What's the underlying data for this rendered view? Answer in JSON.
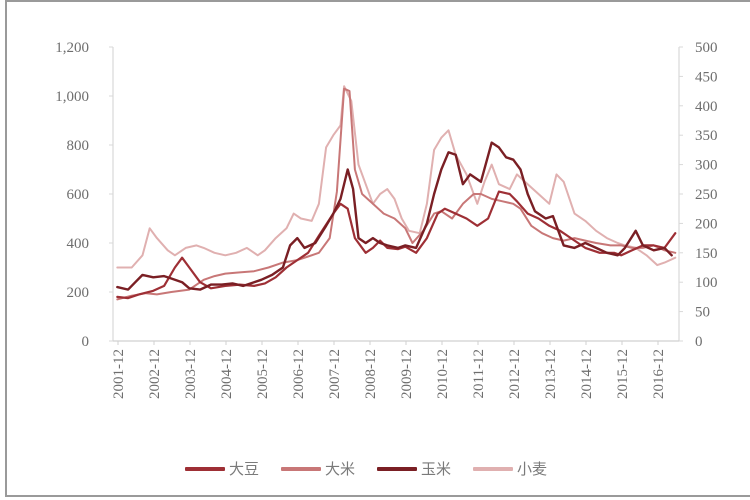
{
  "chart_data": {
    "type": "line",
    "title": "",
    "xlabel": "",
    "ylabel": "",
    "y_left": {
      "min": 0,
      "max": 1200,
      "ticks": [
        0,
        200,
        400,
        600,
        800,
        1000,
        1200
      ],
      "tick_labels": [
        "0",
        "200",
        "400",
        "600",
        "800",
        "1,000",
        "1,200"
      ]
    },
    "y_right": {
      "min": 0,
      "max": 500,
      "ticks": [
        0,
        50,
        100,
        150,
        200,
        250,
        300,
        350,
        400,
        450,
        500
      ],
      "tick_labels": [
        "0",
        "50",
        "100",
        "150",
        "200",
        "250",
        "300",
        "350",
        "400",
        "450",
        "500"
      ]
    },
    "categories": [
      "2001-12",
      "2002-12",
      "2003-12",
      "2004-12",
      "2005-12",
      "2006-12",
      "2007-12",
      "2008-12",
      "2009-12",
      "2010-12",
      "2011-12",
      "2012-12",
      "2013-12",
      "2014-12",
      "2015-12",
      "2016-12"
    ],
    "grid": false,
    "legend_position": "bottom",
    "series": [
      {
        "name": "大豆",
        "color": "#9e2f35",
        "width": 2.2,
        "points": [
          [
            2001.9,
            180
          ],
          [
            2002.2,
            175
          ],
          [
            2002.5,
            190
          ],
          [
            2002.9,
            205
          ],
          [
            2003.2,
            225
          ],
          [
            2003.5,
            300
          ],
          [
            2003.7,
            340
          ],
          [
            2003.9,
            300
          ],
          [
            2004.2,
            240
          ],
          [
            2004.5,
            215
          ],
          [
            2004.9,
            225
          ],
          [
            2005.3,
            230
          ],
          [
            2005.7,
            225
          ],
          [
            2006.0,
            235
          ],
          [
            2006.3,
            260
          ],
          [
            2006.6,
            300
          ],
          [
            2006.9,
            330
          ],
          [
            2007.2,
            360
          ],
          [
            2007.5,
            430
          ],
          [
            2007.9,
            520
          ],
          [
            2008.1,
            560
          ],
          [
            2008.3,
            540
          ],
          [
            2008.5,
            420
          ],
          [
            2008.8,
            360
          ],
          [
            2009.0,
            380
          ],
          [
            2009.2,
            410
          ],
          [
            2009.4,
            380
          ],
          [
            2009.7,
            375
          ],
          [
            2009.9,
            385
          ],
          [
            2010.2,
            360
          ],
          [
            2010.5,
            420
          ],
          [
            2010.8,
            520
          ],
          [
            2011.0,
            540
          ],
          [
            2011.3,
            520
          ],
          [
            2011.6,
            500
          ],
          [
            2011.9,
            470
          ],
          [
            2012.2,
            500
          ],
          [
            2012.5,
            610
          ],
          [
            2012.8,
            600
          ],
          [
            2013.0,
            570
          ],
          [
            2013.3,
            520
          ],
          [
            2013.6,
            500
          ],
          [
            2013.9,
            470
          ],
          [
            2014.2,
            450
          ],
          [
            2014.5,
            420
          ],
          [
            2014.9,
            380
          ],
          [
            2015.3,
            360
          ],
          [
            2015.7,
            360
          ],
          [
            2015.9,
            350
          ],
          [
            2016.2,
            370
          ],
          [
            2016.5,
            390
          ],
          [
            2016.8,
            390
          ],
          [
            2017.1,
            380
          ],
          [
            2017.4,
            440
          ]
        ]
      },
      {
        "name": "大米",
        "color": "#c87777",
        "width": 2.0,
        "points": [
          [
            2001.9,
            170
          ],
          [
            2002.3,
            185
          ],
          [
            2002.7,
            195
          ],
          [
            2003.0,
            190
          ],
          [
            2003.4,
            200
          ],
          [
            2003.9,
            210
          ],
          [
            2004.3,
            250
          ],
          [
            2004.6,
            265
          ],
          [
            2004.9,
            275
          ],
          [
            2005.3,
            280
          ],
          [
            2005.7,
            285
          ],
          [
            2006.1,
            300
          ],
          [
            2006.5,
            320
          ],
          [
            2006.9,
            330
          ],
          [
            2007.2,
            345
          ],
          [
            2007.5,
            360
          ],
          [
            2007.8,
            420
          ],
          [
            2008.0,
            610
          ],
          [
            2008.2,
            1030
          ],
          [
            2008.35,
            1020
          ],
          [
            2008.5,
            700
          ],
          [
            2008.7,
            600
          ],
          [
            2009.0,
            560
          ],
          [
            2009.3,
            520
          ],
          [
            2009.6,
            500
          ],
          [
            2009.9,
            460
          ],
          [
            2010.1,
            400
          ],
          [
            2010.4,
            450
          ],
          [
            2010.7,
            520
          ],
          [
            2010.9,
            530
          ],
          [
            2011.2,
            500
          ],
          [
            2011.5,
            560
          ],
          [
            2011.8,
            600
          ],
          [
            2012.0,
            600
          ],
          [
            2012.3,
            580
          ],
          [
            2012.6,
            570
          ],
          [
            2012.9,
            560
          ],
          [
            2013.1,
            540
          ],
          [
            2013.4,
            470
          ],
          [
            2013.7,
            440
          ],
          [
            2014.0,
            420
          ],
          [
            2014.3,
            410
          ],
          [
            2014.6,
            420
          ],
          [
            2014.9,
            410
          ],
          [
            2015.2,
            400
          ],
          [
            2015.6,
            390
          ],
          [
            2015.9,
            390
          ],
          [
            2016.2,
            380
          ],
          [
            2016.5,
            380
          ],
          [
            2016.8,
            390
          ],
          [
            2017.1,
            370
          ],
          [
            2017.4,
            360
          ]
        ]
      },
      {
        "name": "玉米",
        "color": "#7a1f24",
        "width": 2.4,
        "points": [
          [
            2001.9,
            220
          ],
          [
            2002.2,
            210
          ],
          [
            2002.4,
            240
          ],
          [
            2002.6,
            270
          ],
          [
            2002.9,
            260
          ],
          [
            2003.2,
            265
          ],
          [
            2003.4,
            255
          ],
          [
            2003.7,
            240
          ],
          [
            2003.9,
            215
          ],
          [
            2004.2,
            210
          ],
          [
            2004.5,
            230
          ],
          [
            2004.8,
            230
          ],
          [
            2005.1,
            235
          ],
          [
            2005.4,
            225
          ],
          [
            2005.7,
            240
          ],
          [
            2005.9,
            250
          ],
          [
            2006.2,
            270
          ],
          [
            2006.5,
            300
          ],
          [
            2006.7,
            390
          ],
          [
            2006.9,
            420
          ],
          [
            2007.1,
            380
          ],
          [
            2007.4,
            400
          ],
          [
            2007.7,
            470
          ],
          [
            2007.9,
            520
          ],
          [
            2008.1,
            580
          ],
          [
            2008.3,
            700
          ],
          [
            2008.45,
            620
          ],
          [
            2008.6,
            420
          ],
          [
            2008.8,
            400
          ],
          [
            2009.0,
            420
          ],
          [
            2009.2,
            400
          ],
          [
            2009.4,
            390
          ],
          [
            2009.7,
            380
          ],
          [
            2009.9,
            390
          ],
          [
            2010.2,
            380
          ],
          [
            2010.5,
            480
          ],
          [
            2010.7,
            600
          ],
          [
            2010.9,
            700
          ],
          [
            2011.1,
            770
          ],
          [
            2011.3,
            760
          ],
          [
            2011.5,
            640
          ],
          [
            2011.7,
            680
          ],
          [
            2012.0,
            650
          ],
          [
            2012.3,
            810
          ],
          [
            2012.5,
            790
          ],
          [
            2012.7,
            750
          ],
          [
            2012.9,
            740
          ],
          [
            2013.1,
            700
          ],
          [
            2013.3,
            600
          ],
          [
            2013.5,
            530
          ],
          [
            2013.8,
            500
          ],
          [
            2014.0,
            510
          ],
          [
            2014.3,
            390
          ],
          [
            2014.6,
            380
          ],
          [
            2014.9,
            400
          ],
          [
            2015.2,
            380
          ],
          [
            2015.5,
            360
          ],
          [
            2015.8,
            350
          ],
          [
            2016.0,
            380
          ],
          [
            2016.3,
            450
          ],
          [
            2016.5,
            390
          ],
          [
            2016.8,
            370
          ],
          [
            2017.1,
            380
          ],
          [
            2017.3,
            350
          ]
        ]
      },
      {
        "name": "小麦",
        "color": "#e0b0b0",
        "width": 2.0,
        "points": [
          [
            2001.9,
            300
          ],
          [
            2002.3,
            300
          ],
          [
            2002.6,
            350
          ],
          [
            2002.8,
            460
          ],
          [
            2003.0,
            420
          ],
          [
            2003.3,
            370
          ],
          [
            2003.5,
            350
          ],
          [
            2003.8,
            380
          ],
          [
            2004.1,
            390
          ],
          [
            2004.3,
            380
          ],
          [
            2004.6,
            360
          ],
          [
            2004.9,
            350
          ],
          [
            2005.2,
            360
          ],
          [
            2005.5,
            380
          ],
          [
            2005.8,
            350
          ],
          [
            2006.0,
            370
          ],
          [
            2006.3,
            420
          ],
          [
            2006.6,
            460
          ],
          [
            2006.8,
            520
          ],
          [
            2007.0,
            500
          ],
          [
            2007.3,
            490
          ],
          [
            2007.5,
            560
          ],
          [
            2007.7,
            790
          ],
          [
            2007.9,
            840
          ],
          [
            2008.1,
            880
          ],
          [
            2008.2,
            1040
          ],
          [
            2008.4,
            980
          ],
          [
            2008.6,
            720
          ],
          [
            2008.8,
            640
          ],
          [
            2009.0,
            560
          ],
          [
            2009.2,
            600
          ],
          [
            2009.4,
            620
          ],
          [
            2009.6,
            580
          ],
          [
            2009.8,
            500
          ],
          [
            2010.0,
            450
          ],
          [
            2010.3,
            440
          ],
          [
            2010.5,
            560
          ],
          [
            2010.7,
            780
          ],
          [
            2010.9,
            830
          ],
          [
            2011.1,
            860
          ],
          [
            2011.3,
            760
          ],
          [
            2011.6,
            680
          ],
          [
            2011.9,
            560
          ],
          [
            2012.1,
            650
          ],
          [
            2012.3,
            720
          ],
          [
            2012.5,
            640
          ],
          [
            2012.8,
            620
          ],
          [
            2013.0,
            680
          ],
          [
            2013.3,
            640
          ],
          [
            2013.6,
            600
          ],
          [
            2013.9,
            560
          ],
          [
            2014.1,
            680
          ],
          [
            2014.3,
            650
          ],
          [
            2014.6,
            520
          ],
          [
            2014.9,
            490
          ],
          [
            2015.2,
            450
          ],
          [
            2015.5,
            420
          ],
          [
            2015.8,
            400
          ],
          [
            2016.0,
            390
          ],
          [
            2016.3,
            380
          ],
          [
            2016.6,
            350
          ],
          [
            2016.9,
            310
          ],
          [
            2017.1,
            320
          ],
          [
            2017.4,
            340
          ]
        ]
      }
    ]
  },
  "legend": {
    "items": [
      {
        "label": "大豆",
        "color": "#9e2f35"
      },
      {
        "label": "大米",
        "color": "#c87777"
      },
      {
        "label": "玉米",
        "color": "#7a1f24"
      },
      {
        "label": "小麦",
        "color": "#e0b0b0"
      }
    ]
  }
}
